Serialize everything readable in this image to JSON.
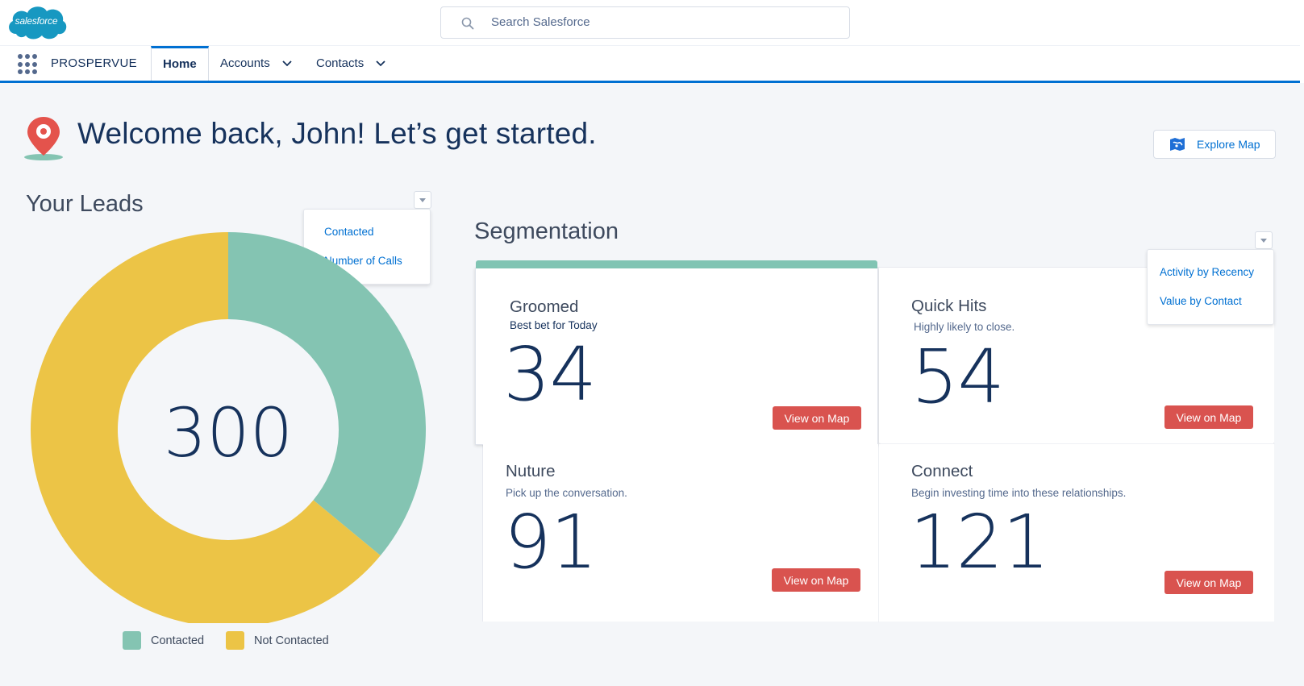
{
  "header": {
    "logo_text": "salesforce",
    "search_placeholder": "Search Salesforce"
  },
  "nav": {
    "app_name": "PROSPERVUE",
    "tabs": [
      {
        "label": "Home",
        "active": true
      },
      {
        "label": "Accounts",
        "dropdown": true
      },
      {
        "label": "Contacts",
        "dropdown": true
      }
    ]
  },
  "welcome": {
    "message": "Welcome back, John! Let’s get started.",
    "explore_label": "Explore Map"
  },
  "leads": {
    "title": "Your Leads",
    "total": "300",
    "menu": [
      "Contacted",
      "Number of Calls"
    ],
    "legend": [
      {
        "label": "Contacted",
        "color": "#84c4b2"
      },
      {
        "label": "Not Contacted",
        "color": "#ecc446"
      }
    ]
  },
  "chart_data": {
    "type": "pie",
    "title": "Your Leads",
    "center_label": "300",
    "slices": [
      {
        "label": "Contacted",
        "fraction": 0.36,
        "color": "#84c4b2"
      },
      {
        "label": "Not Contacted",
        "fraction": 0.64,
        "color": "#ecc446"
      }
    ],
    "legend": "bottom"
  },
  "segmentation": {
    "title": "Segmentation",
    "menu": [
      "Activity by Recency",
      "Value by Contact"
    ],
    "tiles": [
      {
        "name": "Groomed",
        "subtitle": "Best bet for Today",
        "count": "34",
        "button": "View on Map"
      },
      {
        "name": "Quick Hits",
        "subtitle": "Highly likely to close.",
        "count": "54",
        "button": "View on Map"
      },
      {
        "name": "Nuture",
        "subtitle": "Pick up the conversation.",
        "count": "91",
        "button": "View on Map"
      },
      {
        "name": "Connect",
        "subtitle": "Begin investing time into these relationships.",
        "count": "121",
        "button": "View on Map"
      }
    ]
  },
  "colors": {
    "brand_blue": "#0070d2",
    "logo_blue": "#1798c1",
    "accent_teal": "#84c4b2",
    "accent_yellow": "#ecc446",
    "button_red": "#d9534f",
    "text_navy": "#16325c"
  },
  "icons": {
    "search": "search-icon",
    "app_launcher": "app-launcher-icon",
    "pin": "location-pin-icon",
    "map": "map-icon"
  }
}
